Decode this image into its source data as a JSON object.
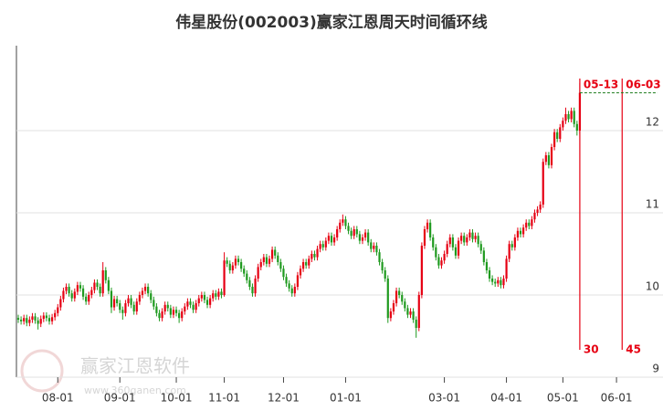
{
  "chart_data": {
    "type": "candlestick",
    "title": "伟星股份(002003)赢家江恩周天时间循环线",
    "watermark": {
      "text": "赢家江恩软件",
      "url": "www.360ganen.com"
    },
    "colors": {
      "up": "#e60012",
      "down": "#1f9a1f",
      "cycle": "#e60012"
    },
    "categories": [
      null,
      null,
      null,
      null,
      null,
      null,
      null,
      null,
      null,
      null,
      null,
      null,
      null,
      null,
      "08-01",
      null,
      null,
      null,
      null,
      null,
      null,
      null,
      null,
      null,
      null,
      null,
      null,
      null,
      null,
      null,
      null,
      null,
      null,
      null,
      null,
      null,
      "09-01",
      null,
      null,
      null,
      null,
      null,
      null,
      null,
      null,
      null,
      null,
      null,
      null,
      null,
      null,
      null,
      null,
      null,
      null,
      null,
      "10-01",
      null,
      null,
      null,
      null,
      null,
      null,
      null,
      null,
      null,
      null,
      null,
      null,
      null,
      null,
      null,
      null,
      "11-01",
      null,
      null,
      null,
      null,
      null,
      null,
      null,
      null,
      null,
      null,
      null,
      null,
      null,
      null,
      null,
      null,
      null,
      null,
      null,
      null,
      "12-01",
      null,
      null,
      null,
      null,
      null,
      null,
      null,
      null,
      null,
      null,
      null,
      null,
      null,
      null,
      null,
      null,
      null,
      null,
      null,
      null,
      null,
      "01-01",
      null,
      null,
      null,
      null,
      null,
      null,
      null,
      null,
      null,
      null,
      null,
      null,
      null,
      null,
      null,
      null,
      null,
      null,
      null,
      null,
      null,
      null,
      null,
      null,
      null,
      null,
      null,
      null,
      null,
      null,
      null,
      null,
      null,
      null,
      "03-01",
      null,
      null,
      null,
      null,
      null,
      null,
      null,
      null,
      null,
      null,
      null,
      null,
      null,
      null,
      null,
      null,
      null,
      null,
      null,
      null,
      null,
      "04-01",
      null,
      null,
      null,
      null,
      null,
      null,
      null,
      null,
      null,
      null,
      null,
      null,
      null,
      null,
      null,
      null,
      null,
      null,
      null,
      "05-01",
      null,
      null,
      null,
      null,
      null,
      "05-13",
      null,
      null,
      null,
      null,
      null,
      null,
      null,
      null,
      null,
      null,
      null,
      null,
      "06-01",
      null,
      "06-03",
      null,
      null,
      null,
      null,
      null,
      null,
      null,
      null,
      null
    ],
    "open": [
      9.72,
      9.7,
      9.68,
      9.72,
      9.66,
      9.7,
      9.74,
      9.69,
      9.65,
      9.71,
      9.75,
      9.72,
      9.68,
      9.73,
      9.78,
      9.85,
      9.95,
      10.05,
      10.1,
      10.02,
      9.96,
      10.04,
      10.12,
      10.08,
      9.98,
      9.92,
      10.0,
      10.06,
      10.15,
      10.1,
      10.02,
      10.3,
      10.18,
      10.05,
      9.85,
      9.95,
      9.9,
      9.82,
      9.78,
      9.9,
      9.96,
      9.88,
      9.8,
      9.92,
      10.0,
      10.05,
      10.1,
      10.02,
      9.94,
      9.86,
      9.78,
      9.72,
      9.8,
      9.88,
      9.84,
      9.76,
      9.82,
      9.78,
      9.72,
      9.8,
      9.86,
      9.92,
      9.88,
      9.82,
      9.9,
      9.96,
      10.0,
      9.94,
      9.88,
      9.96,
      10.02,
      9.98,
      10.04,
      10.0,
      10.42,
      10.38,
      10.3,
      10.36,
      10.44,
      10.4,
      10.32,
      10.26,
      10.18,
      10.1,
      10.02,
      10.2,
      10.34,
      10.4,
      10.46,
      10.38,
      10.44,
      10.55,
      10.48,
      10.4,
      10.32,
      10.22,
      10.14,
      10.08,
      10.02,
      10.1,
      10.24,
      10.32,
      10.4,
      10.36,
      10.44,
      10.5,
      10.46,
      10.56,
      10.62,
      10.58,
      10.66,
      10.72,
      10.64,
      10.7,
      10.8,
      10.88,
      10.92,
      10.84,
      10.78,
      10.72,
      10.8,
      10.74,
      10.66,
      10.7,
      10.76,
      10.64,
      10.56,
      10.6,
      10.52,
      10.4,
      10.3,
      10.2,
      9.72,
      9.8,
      9.9,
      10.05,
      10.0,
      9.92,
      9.84,
      9.76,
      9.8,
      9.7,
      9.6,
      10.0,
      10.6,
      10.8,
      10.88,
      10.7,
      10.58,
      10.46,
      10.36,
      10.42,
      10.5,
      10.62,
      10.7,
      10.58,
      10.48,
      10.66,
      10.72,
      10.64,
      10.7,
      10.76,
      10.68,
      10.72,
      10.62,
      10.54,
      10.4,
      10.3,
      10.2,
      10.16,
      10.14,
      10.18,
      10.12,
      10.2,
      10.44,
      10.62,
      10.58,
      10.7,
      10.78,
      10.74,
      10.82,
      10.88,
      10.84,
      10.92,
      11.0,
      11.04,
      11.1,
      11.62,
      11.7,
      11.58,
      11.8,
      11.98,
      11.9,
      12.04,
      12.12,
      12.2,
      12.14,
      12.24,
      12.08,
      12.0,
      null,
      null,
      null,
      null,
      null,
      null,
      null,
      null,
      null,
      null,
      null,
      null,
      null,
      null,
      null,
      null,
      null,
      null,
      null,
      null,
      null,
      null,
      null,
      null
    ],
    "high": [
      9.76,
      9.74,
      9.76,
      9.76,
      9.74,
      9.78,
      9.78,
      9.73,
      9.75,
      9.79,
      9.79,
      9.76,
      9.77,
      9.82,
      9.89,
      9.99,
      10.09,
      10.14,
      10.14,
      10.06,
      10.08,
      10.16,
      10.16,
      10.12,
      10.02,
      10.04,
      10.1,
      10.19,
      10.19,
      10.14,
      10.4,
      10.34,
      10.22,
      10.09,
      9.99,
      9.99,
      9.94,
      9.86,
      9.94,
      10.0,
      10.0,
      9.92,
      9.96,
      10.04,
      10.09,
      10.14,
      10.14,
      10.06,
      9.98,
      9.9,
      9.82,
      9.84,
      9.92,
      9.92,
      9.88,
      9.86,
      9.86,
      9.82,
      9.84,
      9.9,
      9.96,
      9.96,
      9.92,
      9.94,
      10.0,
      10.04,
      10.04,
      9.98,
      10.0,
      10.06,
      10.06,
      10.08,
      10.08,
      10.52,
      10.46,
      10.42,
      10.4,
      10.48,
      10.48,
      10.44,
      10.36,
      10.3,
      10.22,
      10.14,
      10.24,
      10.38,
      10.44,
      10.5,
      10.5,
      10.48,
      10.59,
      10.59,
      10.52,
      10.44,
      10.36,
      10.26,
      10.18,
      10.12,
      10.14,
      10.28,
      10.36,
      10.44,
      10.44,
      10.48,
      10.54,
      10.54,
      10.6,
      10.66,
      10.66,
      10.7,
      10.76,
      10.76,
      10.74,
      10.84,
      10.92,
      10.98,
      10.96,
      10.88,
      10.82,
      10.84,
      10.84,
      10.78,
      10.74,
      10.8,
      10.8,
      10.68,
      10.64,
      10.64,
      10.56,
      10.44,
      10.34,
      10.24,
      9.84,
      9.94,
      10.09,
      10.09,
      10.04,
      9.96,
      9.88,
      9.84,
      9.84,
      9.74,
      10.04,
      10.64,
      10.84,
      10.92,
      10.92,
      10.74,
      10.62,
      10.5,
      10.46,
      10.54,
      10.66,
      10.74,
      10.74,
      10.62,
      10.7,
      10.76,
      10.76,
      10.74,
      10.8,
      10.8,
      10.76,
      10.76,
      10.66,
      10.58,
      10.44,
      10.34,
      10.24,
      10.2,
      10.22,
      10.22,
      10.24,
      10.48,
      10.66,
      10.66,
      10.74,
      10.82,
      10.82,
      10.86,
      10.92,
      10.92,
      10.96,
      11.04,
      11.08,
      11.14,
      11.66,
      11.74,
      11.74,
      11.84,
      12.02,
      12.02,
      12.08,
      12.16,
      12.28,
      12.24,
      12.28,
      12.28,
      12.12,
      12.58,
      null,
      null,
      null,
      null,
      null,
      null,
      null,
      null,
      null,
      null,
      null,
      null,
      null,
      null,
      null,
      null,
      null,
      null,
      null,
      null,
      null,
      null,
      null,
      null
    ],
    "low": [
      9.66,
      9.64,
      9.64,
      9.62,
      9.62,
      9.66,
      9.65,
      9.58,
      9.61,
      9.67,
      9.68,
      9.64,
      9.64,
      9.69,
      9.74,
      9.81,
      9.91,
      10.01,
      9.98,
      9.92,
      9.92,
      10.0,
      10.04,
      9.94,
      9.88,
      9.88,
      9.96,
      10.02,
      10.06,
      9.98,
      9.98,
      10.14,
      10.01,
      9.78,
      9.81,
      9.86,
      9.78,
      9.7,
      9.74,
      9.86,
      9.84,
      9.76,
      9.76,
      9.88,
      9.96,
      10.01,
      9.98,
      9.9,
      9.82,
      9.74,
      9.68,
      9.68,
      9.76,
      9.8,
      9.72,
      9.72,
      9.74,
      9.66,
      9.68,
      9.76,
      9.82,
      9.84,
      9.78,
      9.78,
      9.86,
      9.92,
      9.9,
      9.84,
      9.84,
      9.92,
      9.94,
      9.94,
      9.96,
      9.98,
      10.34,
      10.26,
      10.26,
      10.32,
      10.36,
      10.28,
      10.22,
      10.14,
      10.06,
      9.98,
      9.98,
      10.16,
      10.3,
      10.36,
      10.34,
      10.34,
      10.4,
      10.44,
      10.36,
      10.28,
      10.18,
      10.1,
      10.04,
      9.98,
      9.98,
      10.06,
      10.2,
      10.28,
      10.32,
      10.32,
      10.4,
      10.42,
      10.42,
      10.52,
      10.54,
      10.54,
      10.62,
      10.6,
      10.6,
      10.66,
      10.76,
      10.84,
      10.8,
      10.74,
      10.68,
      10.68,
      10.7,
      10.62,
      10.62,
      10.66,
      10.6,
      10.52,
      10.52,
      10.48,
      10.36,
      10.26,
      10.16,
      9.66,
      9.68,
      9.76,
      9.86,
      9.96,
      9.88,
      9.8,
      9.72,
      9.72,
      9.66,
      9.48,
      9.56,
      9.96,
      10.56,
      10.76,
      10.66,
      10.54,
      10.42,
      10.32,
      10.32,
      10.38,
      10.46,
      10.58,
      10.54,
      10.44,
      10.44,
      10.62,
      10.6,
      10.6,
      10.66,
      10.64,
      10.64,
      10.58,
      10.5,
      10.36,
      10.26,
      10.16,
      10.12,
      10.1,
      10.1,
      10.08,
      10.08,
      10.16,
      10.4,
      10.54,
      10.54,
      10.66,
      10.7,
      10.7,
      10.78,
      10.8,
      10.8,
      10.88,
      10.96,
      11.0,
      11.06,
      11.58,
      11.54,
      11.54,
      11.76,
      11.86,
      11.86,
      12.0,
      12.08,
      12.1,
      12.1,
      12.04,
      11.94,
      11.96,
      null,
      null,
      null,
      null,
      null,
      null,
      null,
      null,
      null,
      null,
      null,
      null,
      null,
      null,
      null,
      null,
      null,
      null,
      null,
      null,
      null,
      null,
      null,
      null
    ],
    "close": [
      9.7,
      9.68,
      9.72,
      9.66,
      9.7,
      9.74,
      9.69,
      9.65,
      9.71,
      9.75,
      9.72,
      9.68,
      9.73,
      9.78,
      9.85,
      9.95,
      10.05,
      10.1,
      10.02,
      9.96,
      10.04,
      10.12,
      10.08,
      9.98,
      9.92,
      10.0,
      10.06,
      10.15,
      10.1,
      10.02,
      10.3,
      10.18,
      10.05,
      9.85,
      9.95,
      9.9,
      9.82,
      9.78,
      9.9,
      9.96,
      9.88,
      9.8,
      9.92,
      10.0,
      10.05,
      10.1,
      10.02,
      9.94,
      9.86,
      9.78,
      9.72,
      9.8,
      9.88,
      9.84,
      9.76,
      9.82,
      9.78,
      9.72,
      9.8,
      9.86,
      9.92,
      9.88,
      9.82,
      9.9,
      9.96,
      10.0,
      9.94,
      9.88,
      9.96,
      10.02,
      9.98,
      10.04,
      10.0,
      10.42,
      10.38,
      10.3,
      10.36,
      10.44,
      10.4,
      10.32,
      10.26,
      10.18,
      10.1,
      10.02,
      10.2,
      10.34,
      10.4,
      10.46,
      10.38,
      10.44,
      10.55,
      10.48,
      10.4,
      10.32,
      10.22,
      10.14,
      10.08,
      10.02,
      10.1,
      10.24,
      10.32,
      10.4,
      10.36,
      10.44,
      10.5,
      10.46,
      10.56,
      10.62,
      10.58,
      10.66,
      10.72,
      10.64,
      10.7,
      10.8,
      10.88,
      10.92,
      10.84,
      10.78,
      10.72,
      10.8,
      10.74,
      10.66,
      10.7,
      10.76,
      10.64,
      10.56,
      10.6,
      10.52,
      10.4,
      10.3,
      10.2,
      9.72,
      9.8,
      9.9,
      10.05,
      10.0,
      9.92,
      9.84,
      9.76,
      9.8,
      9.7,
      9.6,
      10.0,
      10.6,
      10.8,
      10.88,
      10.7,
      10.58,
      10.46,
      10.36,
      10.42,
      10.5,
      10.62,
      10.7,
      10.58,
      10.48,
      10.66,
      10.72,
      10.64,
      10.7,
      10.76,
      10.68,
      10.72,
      10.62,
      10.54,
      10.4,
      10.3,
      10.2,
      10.16,
      10.14,
      10.18,
      10.12,
      10.2,
      10.44,
      10.62,
      10.58,
      10.7,
      10.78,
      10.74,
      10.82,
      10.88,
      10.84,
      10.92,
      11.0,
      11.04,
      11.1,
      11.62,
      11.7,
      11.58,
      11.8,
      11.98,
      11.9,
      12.04,
      12.12,
      12.2,
      12.14,
      12.24,
      12.08,
      12.0,
      12.46,
      null,
      null,
      null,
      null,
      null,
      null,
      null,
      null,
      null,
      null,
      null,
      null,
      null,
      null,
      null,
      null,
      null,
      null,
      null,
      null,
      null,
      null,
      null,
      null
    ],
    "cycle_lines": [
      {
        "date": "05-13",
        "days": 30
      },
      {
        "date": "06-03",
        "days": 45
      }
    ],
    "ylim": [
      9,
      13
    ],
    "yticks": [
      9,
      10,
      11,
      12
    ],
    "grid": true
  }
}
